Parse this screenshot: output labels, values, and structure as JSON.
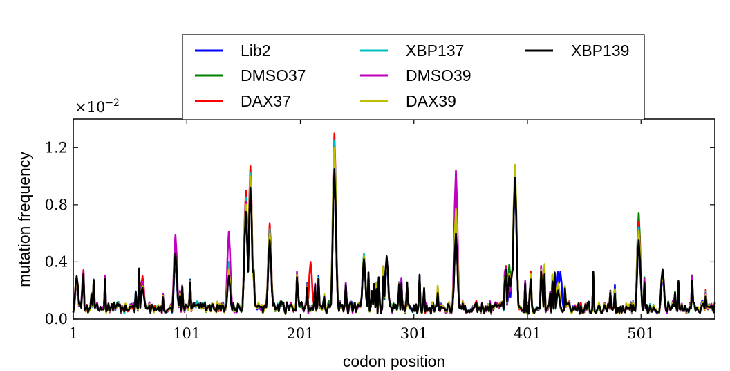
{
  "chart_data": {
    "type": "line",
    "xlabel": "codon position",
    "ylabel": "mutation frequency",
    "y_multiplier_label": "×10^-2",
    "y_multiplier_base": "×10",
    "y_multiplier_exp": "−2",
    "xlim": [
      1,
      566
    ],
    "ylim": [
      0.0,
      1.4
    ],
    "x_ticks": [
      1,
      101,
      201,
      301,
      401,
      501
    ],
    "y_ticks": [
      0.0,
      0.4,
      0.8,
      1.2
    ],
    "y_tick_labels": [
      "0.0",
      "0.4",
      "0.8",
      "1.2"
    ],
    "legend_location": "top-center",
    "legend": [
      "Lib2",
      "DMSO37",
      "DAX37",
      "XBP137",
      "DMSO39",
      "DAX39",
      "XBP139"
    ],
    "baseline": 0.07,
    "series": [
      {
        "name": "Lib2",
        "color": "#0000ff",
        "peaks": [
          [
            4,
            0.25
          ],
          [
            62,
            0.22
          ],
          [
            91,
            0.4
          ],
          [
            138,
            0.3
          ],
          [
            153,
            0.75
          ],
          [
            157,
            0.95
          ],
          [
            174,
            0.55
          ],
          [
            231,
            1.05
          ],
          [
            257,
            0.4
          ],
          [
            277,
            0.38
          ],
          [
            338,
            0.6
          ],
          [
            385,
            0.2
          ],
          [
            390,
            0.95
          ],
          [
            428,
            0.33
          ],
          [
            430,
            0.33
          ],
          [
            499,
            0.55
          ],
          [
            520,
            0.3
          ],
          [
            555,
            0.13
          ]
        ]
      },
      {
        "name": "DMSO37",
        "color": "#008000",
        "peaks": [
          [
            4,
            0.28
          ],
          [
            62,
            0.25
          ],
          [
            91,
            0.45
          ],
          [
            138,
            0.35
          ],
          [
            153,
            0.8
          ],
          [
            157,
            1.0
          ],
          [
            174,
            0.6
          ],
          [
            231,
            1.12
          ],
          [
            257,
            0.45
          ],
          [
            277,
            0.4
          ],
          [
            338,
            0.7
          ],
          [
            385,
            0.38
          ],
          [
            390,
            1.0
          ],
          [
            428,
            0.2
          ],
          [
            499,
            0.74
          ],
          [
            520,
            0.32
          ],
          [
            555,
            0.1
          ]
        ]
      },
      {
        "name": "DAX37",
        "color": "#ff0000",
        "peaks": [
          [
            4,
            0.3
          ],
          [
            62,
            0.3
          ],
          [
            91,
            0.48
          ],
          [
            138,
            0.38
          ],
          [
            153,
            0.9
          ],
          [
            157,
            1.07
          ],
          [
            174,
            0.67
          ],
          [
            210,
            0.4
          ],
          [
            231,
            1.3
          ],
          [
            257,
            0.45
          ],
          [
            277,
            0.43
          ],
          [
            338,
            0.72
          ],
          [
            385,
            0.3
          ],
          [
            390,
            1.02
          ],
          [
            428,
            0.25
          ],
          [
            499,
            0.68
          ],
          [
            520,
            0.34
          ],
          [
            555,
            0.12
          ]
        ]
      },
      {
        "name": "XBP137",
        "color": "#00bfbf",
        "peaks": [
          [
            4,
            0.27
          ],
          [
            62,
            0.24
          ],
          [
            91,
            0.45
          ],
          [
            138,
            0.4
          ],
          [
            153,
            0.85
          ],
          [
            157,
            1.02
          ],
          [
            174,
            0.63
          ],
          [
            231,
            1.25
          ],
          [
            257,
            0.46
          ],
          [
            277,
            0.42
          ],
          [
            338,
            0.78
          ],
          [
            385,
            0.3
          ],
          [
            390,
            1.04
          ],
          [
            428,
            0.2
          ],
          [
            499,
            0.64
          ],
          [
            520,
            0.33
          ],
          [
            555,
            0.1
          ]
        ]
      },
      {
        "name": "DMSO39",
        "color": "#bf00bf",
        "peaks": [
          [
            4,
            0.26
          ],
          [
            62,
            0.26
          ],
          [
            91,
            0.59
          ],
          [
            138,
            0.61
          ],
          [
            153,
            0.82
          ],
          [
            157,
            1.0
          ],
          [
            174,
            0.6
          ],
          [
            231,
            1.1
          ],
          [
            257,
            0.43
          ],
          [
            277,
            0.42
          ],
          [
            338,
            1.04
          ],
          [
            385,
            0.25
          ],
          [
            390,
            1.0
          ],
          [
            428,
            0.22
          ],
          [
            499,
            0.62
          ],
          [
            520,
            0.32
          ],
          [
            555,
            0.1
          ]
        ]
      },
      {
        "name": "DAX39",
        "color": "#bfbf00",
        "peaks": [
          [
            4,
            0.27
          ],
          [
            62,
            0.23
          ],
          [
            91,
            0.46
          ],
          [
            138,
            0.35
          ],
          [
            153,
            0.8
          ],
          [
            157,
            1.0
          ],
          [
            174,
            0.6
          ],
          [
            231,
            1.2
          ],
          [
            257,
            0.44
          ],
          [
            277,
            0.43
          ],
          [
            338,
            0.77
          ],
          [
            385,
            0.32
          ],
          [
            390,
            1.08
          ],
          [
            428,
            0.25
          ],
          [
            499,
            0.62
          ],
          [
            520,
            0.33
          ],
          [
            555,
            0.12
          ]
        ]
      },
      {
        "name": "XBP139",
        "color": "#000000",
        "peaks": [
          [
            4,
            0.3
          ],
          [
            62,
            0.22
          ],
          [
            91,
            0.46
          ],
          [
            138,
            0.3
          ],
          [
            153,
            0.75
          ],
          [
            157,
            0.92
          ],
          [
            174,
            0.55
          ],
          [
            231,
            1.05
          ],
          [
            257,
            0.42
          ],
          [
            277,
            0.44
          ],
          [
            338,
            0.6
          ],
          [
            385,
            0.3
          ],
          [
            390,
            0.99
          ],
          [
            428,
            0.2
          ],
          [
            499,
            0.55
          ],
          [
            520,
            0.35
          ],
          [
            555,
            0.1
          ]
        ]
      }
    ]
  }
}
